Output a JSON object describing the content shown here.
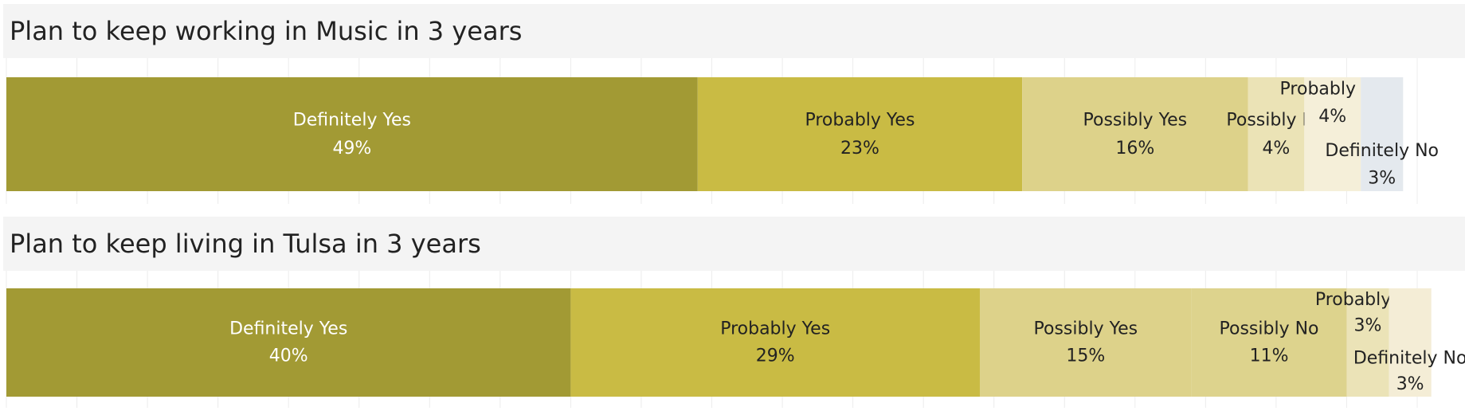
{
  "chart_data": [
    {
      "type": "stacked-bar-100",
      "title": "Plan to keep working in Music in 3 years",
      "xlim": [
        0,
        100
      ],
      "xticks": [
        0,
        5,
        10,
        15,
        20,
        25,
        30,
        35,
        40,
        45,
        50,
        55,
        60,
        65,
        70,
        75,
        80,
        85,
        90,
        95,
        100
      ],
      "grid": true,
      "series": [
        {
          "name": "Definitely Yes",
          "color": "#a29a34",
          "values": [
            49
          ],
          "value_labels": [
            "49%"
          ]
        },
        {
          "name": "Probably Yes",
          "color": "#c9bb44",
          "values": [
            23
          ],
          "value_labels": [
            "23%"
          ]
        },
        {
          "name": "Possibly Yes",
          "color": "#ddd28a",
          "values": [
            16
          ],
          "value_labels": [
            "16%"
          ]
        },
        {
          "name": "Possibly No",
          "color": "#ebe3b6",
          "values": [
            4
          ],
          "value_labels": [
            "4%"
          ]
        },
        {
          "name": "Probably No",
          "color": "#f5efd9",
          "values": [
            4
          ],
          "value_labels": [
            "4%"
          ]
        },
        {
          "name": "Definitely No",
          "color": "#e4e9ee",
          "values": [
            3
          ],
          "value_labels": [
            "3%"
          ]
        }
      ]
    },
    {
      "type": "stacked-bar-100",
      "title": "Plan to keep living in Tulsa in 3 years",
      "xlim": [
        0,
        100
      ],
      "xticks": [
        0,
        5,
        10,
        15,
        20,
        25,
        30,
        35,
        40,
        45,
        50,
        55,
        60,
        65,
        70,
        75,
        80,
        85,
        90,
        95,
        100
      ],
      "grid": true,
      "series": [
        {
          "name": "Definitely Yes",
          "color": "#a29a34",
          "values": [
            40
          ],
          "value_labels": [
            "40%"
          ]
        },
        {
          "name": "Probably Yes",
          "color": "#c9bb44",
          "values": [
            29
          ],
          "value_labels": [
            "29%"
          ]
        },
        {
          "name": "Possibly Yes",
          "color": "#ddd28a",
          "values": [
            15
          ],
          "value_labels": [
            "15%"
          ]
        },
        {
          "name": "Possibly No",
          "color": "#ddd38d",
          "values": [
            11
          ],
          "value_labels": [
            "11%"
          ]
        },
        {
          "name": "Probably No",
          "color": "#ebe3b7",
          "values": [
            3
          ],
          "value_labels": [
            "3%"
          ]
        },
        {
          "name": "Definitely No",
          "color": "#f4edd6",
          "values": [
            3
          ],
          "value_labels": [
            "3%"
          ]
        }
      ]
    }
  ]
}
